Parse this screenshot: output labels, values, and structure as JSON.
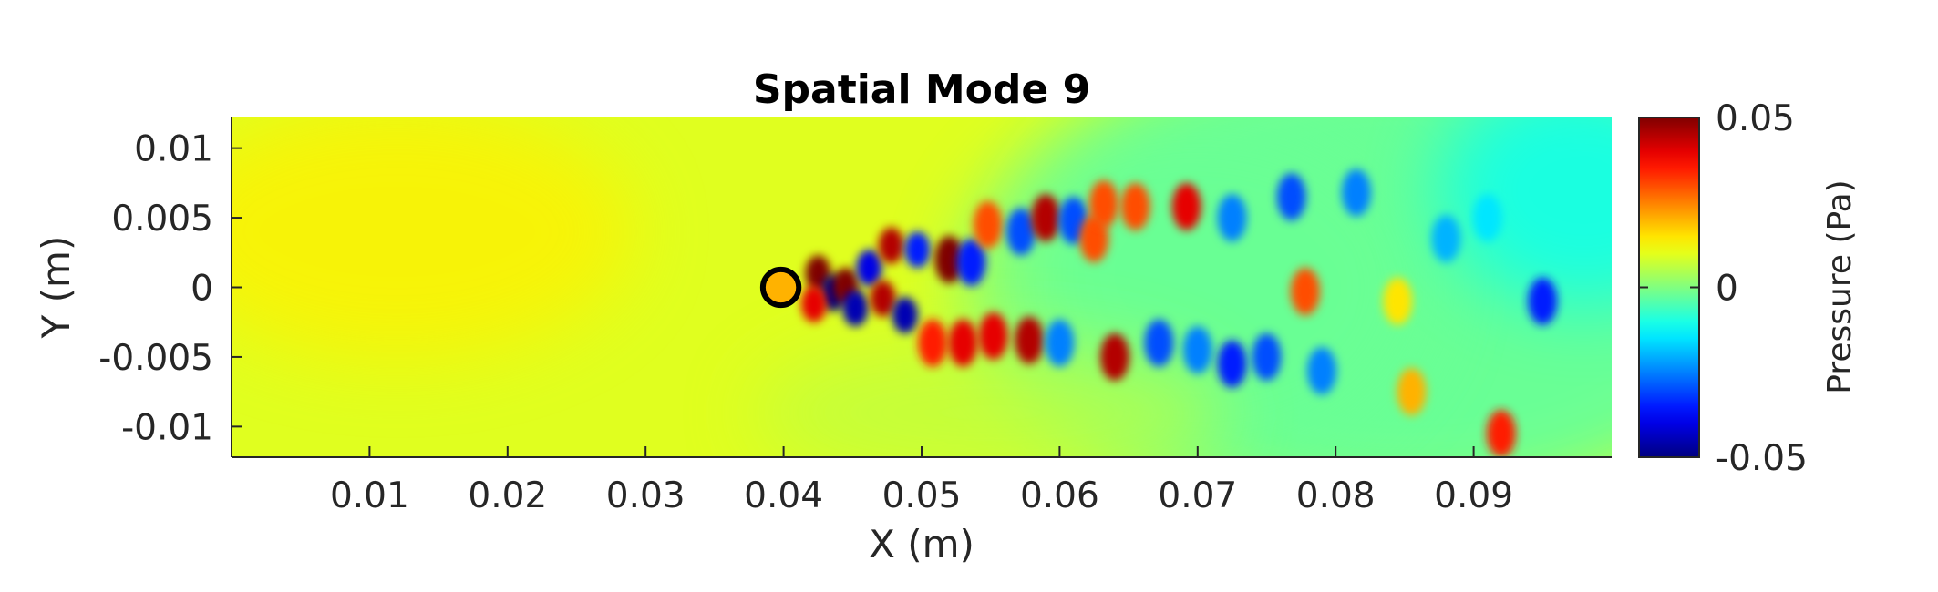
{
  "chart_data": {
    "type": "heatmap",
    "title": "Spatial Mode 9",
    "xlabel": "X (m)",
    "ylabel": "Y (m)",
    "xlim": [
      0,
      0.1
    ],
    "ylim": [
      -0.0122,
      0.0122
    ],
    "xticks": [
      0.01,
      0.02,
      0.03,
      0.04,
      0.05,
      0.06,
      0.07,
      0.08,
      0.09
    ],
    "xtick_labels": [
      "0.01",
      "0.02",
      "0.03",
      "0.04",
      "0.05",
      "0.06",
      "0.07",
      "0.08",
      "0.09"
    ],
    "yticks": [
      0.01,
      0.005,
      0,
      -0.005,
      -0.01
    ],
    "ytick_labels": [
      "0.01",
      "0.005",
      "0",
      "-0.005",
      "-0.01"
    ],
    "colorbar": {
      "label": "Pressure (Pa)",
      "colormap": "jet",
      "range": [
        -0.05,
        0.05
      ],
      "ticks": [
        0.05,
        0,
        -0.05
      ],
      "tick_labels": [
        "0.05",
        "0",
        "-0.05"
      ]
    },
    "cylinder": {
      "x": 0.0398,
      "y": 0,
      "radius": 0.0013
    },
    "background_level": 0.0095,
    "structures": [
      {
        "x": 0.0425,
        "y": 0.001,
        "value": 0.05
      },
      {
        "x": 0.0436,
        "y": -0.0004,
        "value": -0.05
      },
      {
        "x": 0.0445,
        "y": 0.0001,
        "value": 0.05
      },
      {
        "x": 0.0452,
        "y": -0.0015,
        "value": -0.045
      },
      {
        "x": 0.0422,
        "y": -0.0012,
        "value": 0.04
      },
      {
        "x": 0.0462,
        "y": 0.0014,
        "value": -0.04
      },
      {
        "x": 0.0472,
        "y": -0.0008,
        "value": 0.045
      },
      {
        "x": 0.0478,
        "y": 0.003,
        "value": 0.045
      },
      {
        "x": 0.0488,
        "y": -0.002,
        "value": -0.045
      },
      {
        "x": 0.0497,
        "y": 0.0027,
        "value": -0.035
      },
      {
        "x": 0.0508,
        "y": -0.004,
        "value": 0.035
      },
      {
        "x": 0.052,
        "y": 0.002,
        "value": 0.05
      },
      {
        "x": 0.0536,
        "y": 0.0018,
        "value": -0.035
      },
      {
        "x": 0.053,
        "y": -0.004,
        "value": 0.04
      },
      {
        "x": 0.0552,
        "y": -0.0035,
        "value": 0.04
      },
      {
        "x": 0.0548,
        "y": 0.0045,
        "value": 0.03
      },
      {
        "x": 0.0572,
        "y": 0.004,
        "value": -0.03
      },
      {
        "x": 0.0578,
        "y": -0.0038,
        "value": 0.045
      },
      {
        "x": 0.059,
        "y": 0.005,
        "value": 0.045
      },
      {
        "x": 0.06,
        "y": -0.004,
        "value": -0.025
      },
      {
        "x": 0.061,
        "y": 0.0048,
        "value": -0.03
      },
      {
        "x": 0.0625,
        "y": 0.0035,
        "value": 0.03
      },
      {
        "x": 0.0632,
        "y": 0.006,
        "value": 0.03
      },
      {
        "x": 0.064,
        "y": -0.005,
        "value": 0.045
      },
      {
        "x": 0.0655,
        "y": 0.0058,
        "value": 0.03
      },
      {
        "x": 0.0672,
        "y": -0.004,
        "value": -0.03
      },
      {
        "x": 0.0692,
        "y": 0.0058,
        "value": 0.04
      },
      {
        "x": 0.07,
        "y": -0.0045,
        "value": -0.025
      },
      {
        "x": 0.0725,
        "y": 0.005,
        "value": -0.025
      },
      {
        "x": 0.0725,
        "y": -0.0055,
        "value": -0.035
      },
      {
        "x": 0.075,
        "y": -0.005,
        "value": -0.03
      },
      {
        "x": 0.0768,
        "y": 0.0065,
        "value": -0.03
      },
      {
        "x": 0.0778,
        "y": -0.0003,
        "value": 0.03
      },
      {
        "x": 0.079,
        "y": -0.006,
        "value": -0.025
      },
      {
        "x": 0.0815,
        "y": 0.0068,
        "value": -0.025
      },
      {
        "x": 0.0845,
        "y": -0.001,
        "value": 0.015
      },
      {
        "x": 0.0855,
        "y": -0.0075,
        "value": 0.02
      },
      {
        "x": 0.088,
        "y": 0.0035,
        "value": -0.02
      },
      {
        "x": 0.092,
        "y": -0.0105,
        "value": 0.035
      },
      {
        "x": 0.095,
        "y": -0.001,
        "value": -0.035
      },
      {
        "x": 0.091,
        "y": 0.005,
        "value": -0.015
      }
    ]
  }
}
